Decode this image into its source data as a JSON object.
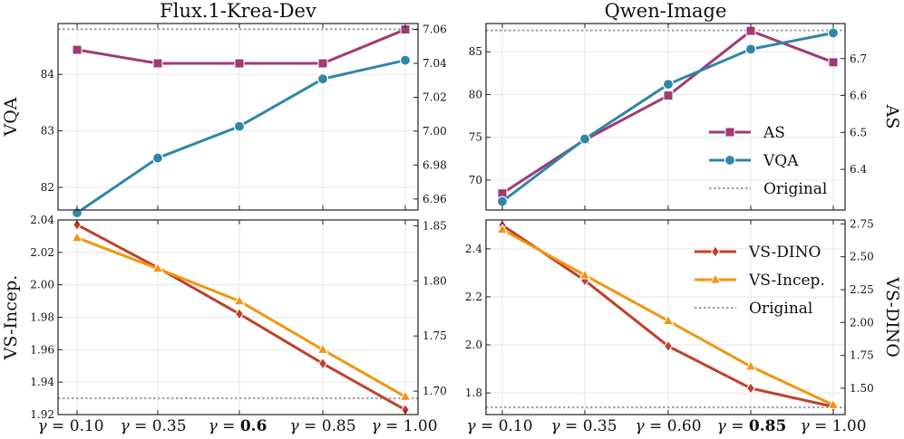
{
  "chart_data": [
    {
      "type": "line",
      "title": "Flux.1-Krea-Dev",
      "ylabel_left": "VQA",
      "ylabel_right": "",
      "x_categories": [
        "γ = 0.10",
        "γ = 0.35",
        "γ = 0.6",
        "γ = 0.85",
        "γ = 1.00"
      ],
      "x_bold_index": 2,
      "left_axis": {
        "ylim": [
          81.6,
          84.9
        ],
        "ticks": [
          82,
          83,
          84
        ]
      },
      "right_axis": {
        "ylim": [
          6.9535,
          7.0635
        ],
        "ticks": [
          6.96,
          6.98,
          7.0,
          7.02,
          7.04,
          7.06
        ]
      },
      "series": [
        {
          "key": "AS",
          "axis": "right",
          "color": "#a13a73",
          "marker": "square",
          "values": [
            7.048,
            7.04,
            7.04,
            7.04,
            7.06
          ]
        },
        {
          "key": "VQA",
          "axis": "left",
          "color": "#2e86a8",
          "marker": "circle",
          "values": [
            81.55,
            82.52,
            83.08,
            83.92,
            84.25
          ]
        }
      ],
      "reference_line": {
        "axis": "left",
        "value": 84.8,
        "color": "#a6a6a6"
      },
      "grid": true
    },
    {
      "type": "line",
      "title": "Qwen-Image",
      "ylabel_left": "",
      "ylabel_right": "AS",
      "x_categories": [
        "γ = 0.10",
        "γ = 0.35",
        "γ = 0.60",
        "γ = 0.85",
        "γ = 1.00"
      ],
      "x_bold_index": 3,
      "left_axis": {
        "ylim": [
          66.5,
          88.3
        ],
        "ticks": [
          70,
          75,
          80,
          85
        ]
      },
      "right_axis": {
        "ylim": [
          6.29,
          6.795
        ],
        "ticks": [
          6.4,
          6.5,
          6.6,
          6.7
        ]
      },
      "series": [
        {
          "key": "AS",
          "axis": "right",
          "color": "#a13a73",
          "marker": "square",
          "values": [
            6.335,
            6.48,
            6.6,
            6.775,
            6.69
          ]
        },
        {
          "key": "VQA",
          "axis": "left",
          "color": "#2e86a8",
          "marker": "circle",
          "values": [
            67.5,
            74.8,
            81.2,
            85.3,
            87.2
          ]
        }
      ],
      "reference_line": {
        "axis": "left",
        "value": 87.5,
        "color": "#a6a6a6"
      },
      "legend": {
        "placement": "center-right",
        "entries": [
          "AS",
          "VQA",
          "Original"
        ]
      },
      "grid": true
    },
    {
      "type": "line",
      "title": "",
      "ylabel_left": "VS-Incep.",
      "ylabel_right": "",
      "x_categories": [
        "γ = 0.10",
        "γ = 0.35",
        "γ = 0.6",
        "γ = 0.85",
        "γ = 1.00"
      ],
      "x_bold_index": 2,
      "left_axis": {
        "ylim": [
          1.92,
          2.04
        ],
        "ticks": [
          1.92,
          1.94,
          1.96,
          1.98,
          2.0,
          2.02,
          2.04
        ]
      },
      "right_axis": {
        "ylim": [
          1.6787,
          1.8553
        ],
        "ticks": [
          1.7,
          1.75,
          1.8,
          1.85
        ]
      },
      "series": [
        {
          "key": "VS-DINO",
          "axis": "right",
          "color": "#c0402a",
          "marker": "diamond",
          "values": [
            1.851,
            1.812,
            1.77,
            1.725,
            1.683
          ]
        },
        {
          "key": "VS-Incep.",
          "axis": "left",
          "color": "#f0960f",
          "values": [
            2.029,
            2.01,
            1.99,
            1.96,
            1.931
          ]
        }
      ],
      "reference_line": {
        "axis": "left",
        "value": 1.93,
        "color": "#a6a6a6"
      },
      "grid": true
    },
    {
      "type": "line",
      "title": "",
      "ylabel_left": "",
      "ylabel_right": "VS-DINO",
      "x_categories": [
        "γ = 0.10",
        "γ = 0.35",
        "γ = 0.60",
        "γ = 0.85",
        "γ = 1.00"
      ],
      "x_bold_index": 3,
      "left_axis": {
        "ylim": [
          1.71,
          2.52
        ],
        "ticks": [
          1.8,
          2.0,
          2.2,
          2.4
        ]
      },
      "right_axis": {
        "ylim": [
          1.3,
          2.78
        ],
        "ticks": [
          1.5,
          1.75,
          2.0,
          2.25,
          2.5,
          2.75
        ]
      },
      "series": [
        {
          "key": "VS-DINO",
          "axis": "right",
          "color": "#c0402a",
          "marker": "diamond",
          "values": [
            2.74,
            2.32,
            1.82,
            1.5,
            1.36
          ]
        },
        {
          "key": "VS-Incep.",
          "axis": "left",
          "color": "#f0960f",
          "values": [
            2.48,
            2.29,
            2.1,
            1.91,
            1.75
          ]
        }
      ],
      "reference_line": {
        "axis": "left",
        "value": 1.74,
        "color": "#a6a6a6"
      },
      "legend": {
        "placement": "top-right",
        "entries": [
          "VS-DINO",
          "VS-Incep.",
          "Original"
        ]
      },
      "grid": true
    }
  ]
}
